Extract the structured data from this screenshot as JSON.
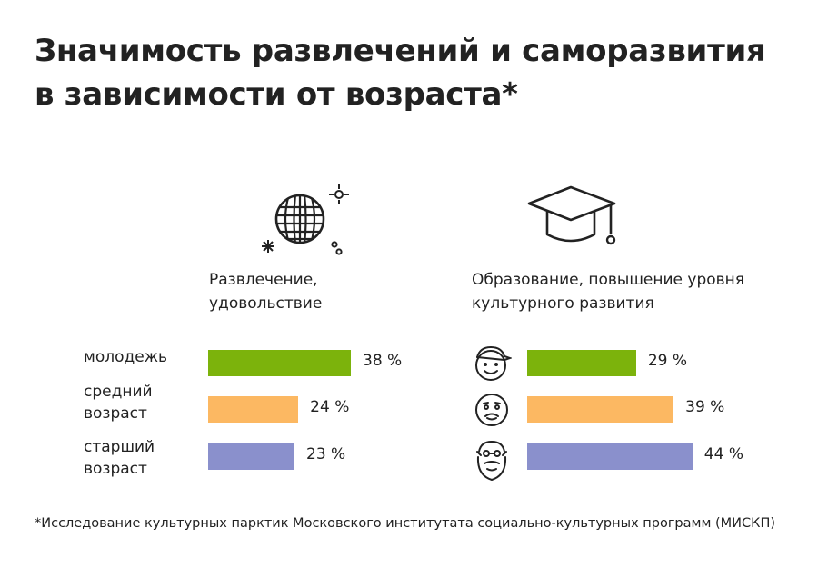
{
  "title": {
    "line1": "Значимость развлечений и саморазвития",
    "line2": "в зависимости от возраста*"
  },
  "icons": {
    "disco": "disco-ball-icon",
    "education": "graduation-cap-icon",
    "youth": "young-face-icon",
    "middle": "middle-aged-face-icon",
    "senior": "old-bearded-face-icon"
  },
  "colors": {
    "youth": "#7cb30c",
    "middle": "#fcb862",
    "senior": "#8a90cc"
  },
  "age_groups": [
    {
      "line1": "молодежь",
      "line2": ""
    },
    {
      "line1": "средний",
      "line2": "возраст"
    },
    {
      "line1": "старший",
      "line2": "возраст"
    }
  ],
  "chart_data": [
    {
      "type": "bar",
      "orientation": "horizontal",
      "title_line1": "Развлечение,",
      "title_line2": "удовольствие",
      "categories": [
        "молодежь",
        "средний возраст",
        "старший возраст"
      ],
      "values": [
        38,
        24,
        23
      ],
      "labels": [
        "38 %",
        "24 %",
        "23 %"
      ],
      "unit": "%",
      "xlim": [
        0,
        50
      ]
    },
    {
      "type": "bar",
      "orientation": "horizontal",
      "title_line1": "Образование, повышение уровня",
      "title_line2": "культурного развития",
      "categories": [
        "молодежь",
        "средний возраст",
        "старший возраст"
      ],
      "values": [
        29,
        39,
        44
      ],
      "labels": [
        "29 %",
        "39 %",
        "44 %"
      ],
      "unit": "%",
      "xlim": [
        0,
        50
      ]
    }
  ],
  "footnote": "*Исследование культурных парктик Московского институтата социально-культурных программ (МИСКП)"
}
